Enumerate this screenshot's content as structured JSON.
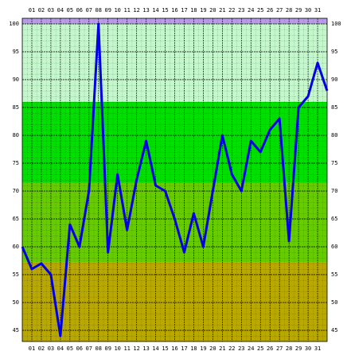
{
  "chart_data": {
    "type": "line",
    "categories": [
      null,
      "01",
      "02",
      "03",
      "04",
      "05",
      "06",
      "07",
      "08",
      "09",
      "10",
      "11",
      "12",
      "13",
      "14",
      "15",
      "16",
      "17",
      "18",
      "19",
      "20",
      "21",
      "22",
      "23",
      "24",
      "25",
      "26",
      "27",
      "28",
      "29",
      "30",
      "31",
      null
    ],
    "values": [
      60,
      56,
      57,
      55,
      44,
      64,
      60,
      70,
      100,
      59,
      73,
      63,
      72,
      79,
      71,
      70,
      65,
      59,
      66,
      60,
      70,
      80,
      73,
      70,
      79,
      77,
      81,
      83,
      61,
      85,
      87,
      93,
      88
    ],
    "color": "#0000e6",
    "ylim": [
      43,
      101
    ],
    "yticks": [
      45,
      50,
      55,
      60,
      65,
      70,
      75,
      80,
      85,
      90,
      95,
      100
    ],
    "grid": true,
    "bands": [
      {
        "from": 43,
        "to": 57.2,
        "color": "#b8a800"
      },
      {
        "from": 57.2,
        "to": 71.5,
        "color": "#66cc00"
      },
      {
        "from": 71.5,
        "to": 86,
        "color": "#00e000"
      },
      {
        "from": 86,
        "to": 100,
        "color": "#c4f8cc"
      },
      {
        "from": 100,
        "to": 101,
        "color": "#b89ce8"
      }
    ]
  }
}
